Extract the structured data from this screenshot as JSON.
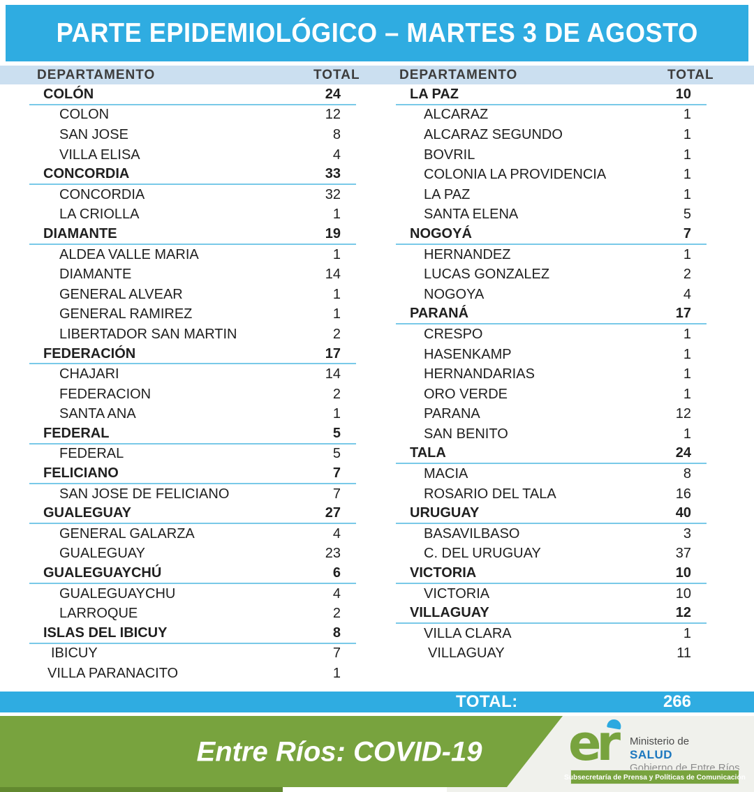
{
  "header": {
    "title": "PARTE EPIDEMIOLÓGICO – MARTES 3 DE AGOSTO"
  },
  "columns_header": {
    "department_label": "DEPARTAMENTO",
    "total_label": "TOTAL"
  },
  "table": {
    "left": [
      {
        "name": "COLÓN",
        "total": 24,
        "localities": [
          {
            "name": "COLON",
            "total": 12
          },
          {
            "name": "SAN JOSE",
            "total": 8
          },
          {
            "name": "VILLA ELISA",
            "total": 4
          }
        ]
      },
      {
        "name": "CONCORDIA",
        "total": 33,
        "localities": [
          {
            "name": "CONCORDIA",
            "total": 32
          },
          {
            "name": "LA CRIOLLA",
            "total": 1
          }
        ]
      },
      {
        "name": "DIAMANTE",
        "total": 19,
        "localities": [
          {
            "name": "ALDEA VALLE MARIA",
            "total": 1
          },
          {
            "name": "DIAMANTE",
            "total": 14
          },
          {
            "name": "GENERAL ALVEAR",
            "total": 1
          },
          {
            "name": "GENERAL RAMIREZ",
            "total": 1
          },
          {
            "name": "LIBERTADOR SAN MARTIN",
            "total": 2
          }
        ]
      },
      {
        "name": "FEDERACIÓN",
        "total": 17,
        "localities": [
          {
            "name": "CHAJARI",
            "total": 14
          },
          {
            "name": "FEDERACION",
            "total": 2
          },
          {
            "name": "SANTA ANA",
            "total": 1
          }
        ]
      },
      {
        "name": "FEDERAL",
        "total": 5,
        "localities": [
          {
            "name": "FEDERAL",
            "total": 5
          }
        ]
      },
      {
        "name": "FELICIANO",
        "total": 7,
        "localities": [
          {
            "name": "SAN JOSE DE FELICIANO",
            "total": 7
          }
        ]
      },
      {
        "name": "GUALEGUAY",
        "total": 27,
        "localities": [
          {
            "name": "GENERAL GALARZA",
            "total": 4
          },
          {
            "name": "GUALEGUAY",
            "total": 23
          }
        ]
      },
      {
        "name": "GUALEGUAYCHÚ",
        "total": 6,
        "localities": [
          {
            "name": "GUALEGUAYCHU",
            "total": 4
          },
          {
            "name": "LARROQUE",
            "total": 2
          }
        ]
      },
      {
        "name": "ISLAS DEL IBICUY",
        "total": 8,
        "localities": [
          {
            "name": "IBICUY",
            "total": 7,
            "indent": 31
          },
          {
            "name": "VILLA PARANACITO",
            "total": 1,
            "indent": 26
          }
        ]
      }
    ],
    "right": [
      {
        "name": "LA PAZ",
        "total": 10,
        "localities": [
          {
            "name": "ALCARAZ",
            "total": 1
          },
          {
            "name": "ALCARAZ SEGUNDO",
            "total": 1
          },
          {
            "name": "BOVRIL",
            "total": 1
          },
          {
            "name": "COLONIA LA PROVIDENCIA",
            "total": 1
          },
          {
            "name": "LA PAZ",
            "total": 1
          },
          {
            "name": "SANTA ELENA",
            "total": 5
          }
        ]
      },
      {
        "name": "NOGOYÁ",
        "total": 7,
        "localities": [
          {
            "name": "HERNANDEZ",
            "total": 1
          },
          {
            "name": "LUCAS GONZALEZ",
            "total": 2
          },
          {
            "name": "NOGOYA",
            "total": 4
          }
        ]
      },
      {
        "name": "PARANÁ",
        "total": 17,
        "localities": [
          {
            "name": "CRESPO",
            "total": 1
          },
          {
            "name": "HASENKAMP",
            "total": 1
          },
          {
            "name": "HERNANDARIAS",
            "total": 1
          },
          {
            "name": "ORO VERDE",
            "total": 1
          },
          {
            "name": "PARANA",
            "total": 12
          },
          {
            "name": "SAN BENITO",
            "total": 1
          }
        ]
      },
      {
        "name": "TALA",
        "total": 24,
        "localities": [
          {
            "name": "MACIA",
            "total": 8
          },
          {
            "name": "ROSARIO DEL TALA",
            "total": 16
          }
        ]
      },
      {
        "name": "URUGUAY",
        "total": 40,
        "localities": [
          {
            "name": "BASAVILBASO",
            "total": 3
          },
          {
            "name": "C. DEL URUGUAY",
            "total": 37
          }
        ]
      },
      {
        "name": "VICTORIA",
        "total": 10,
        "localities": [
          {
            "name": "VICTORIA",
            "total": 10
          }
        ]
      },
      {
        "name": "VILLAGUAY",
        "total": 12,
        "localities": [
          {
            "name": "VILLA CLARA",
            "total": 1
          },
          {
            "name": "VILLAGUAY",
            "total": 11,
            "indent": 46
          }
        ]
      }
    ]
  },
  "total_bar": {
    "label": "TOTAL:",
    "value": "266"
  },
  "footer": {
    "slogan": "Entre Ríos: COVID-19",
    "logo": {
      "text": "er"
    },
    "ministry": {
      "line1": "Ministerio de",
      "line2": "SALUD",
      "line3": "Gobierno de Entre Ríos"
    },
    "subsecretaria": "Subsecretaría de Prensa y Políticas de Comunicación"
  },
  "colors": {
    "accent_cyan": "#2FACE1",
    "band_blue": "#CBDFF0",
    "rule_blue": "#79C9E8",
    "green": "#78A33E",
    "green_dark": "#62892F",
    "panel_gray": "#F0F1EC",
    "salud_blue": "#1C77BE",
    "logo_cap_blue": "#2BA9E0"
  }
}
